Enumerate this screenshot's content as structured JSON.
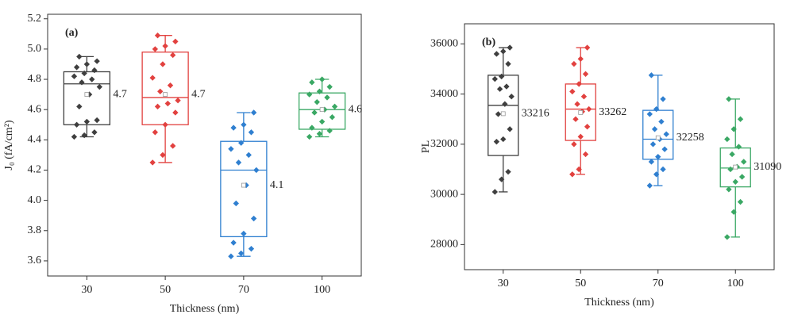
{
  "chart_data": [
    {
      "type": "box",
      "annotation": "(a)",
      "ylabel": "J₀ (fA/cm²)",
      "xlabel": "Thickness (nm)",
      "categories": [
        "30",
        "50",
        "70",
        "100"
      ],
      "colors": [
        "#3f3f3f",
        "#e2413f",
        "#2f7fd0",
        "#3aa864"
      ],
      "ylim": [
        3.5,
        5.23
      ],
      "yticks": [
        3.6,
        3.8,
        {
          "value": 4,
          "label": "4.0"
        },
        4.2,
        4.4,
        4.6,
        4.8,
        {
          "value": 5,
          "label": "5.0"
        },
        5.2
      ],
      "boxes": [
        {
          "min": 4.42,
          "q1": 4.5,
          "median": 4.77,
          "q3": 4.85,
          "max": 4.95,
          "mean": 4.7,
          "points": [
            4.42,
            4.43,
            4.45,
            4.5,
            4.52,
            4.53,
            4.62,
            4.7,
            4.75,
            4.78,
            4.8,
            4.82,
            4.84,
            4.86,
            4.88,
            4.9,
            4.92,
            4.95
          ]
        },
        {
          "min": 4.25,
          "q1": 4.5,
          "median": 4.68,
          "q3": 4.98,
          "max": 5.09,
          "mean": 4.7,
          "points": [
            4.25,
            4.3,
            4.36,
            4.45,
            4.5,
            4.58,
            4.62,
            4.64,
            4.66,
            4.72,
            4.76,
            4.81,
            4.9,
            4.96,
            5.0,
            5.02,
            5.05,
            5.09
          ]
        },
        {
          "min": 3.63,
          "q1": 3.76,
          "median": 4.2,
          "q3": 4.39,
          "max": 4.58,
          "mean": 4.1,
          "points": [
            3.63,
            3.65,
            3.68,
            3.72,
            3.78,
            3.88,
            3.98,
            4.1,
            4.2,
            4.25,
            4.3,
            4.34,
            4.38,
            4.45,
            4.48,
            4.5,
            4.58
          ]
        },
        {
          "min": 4.42,
          "q1": 4.47,
          "median": 4.6,
          "q3": 4.71,
          "max": 4.8,
          "mean": 4.6,
          "points": [
            4.42,
            4.44,
            4.46,
            4.48,
            4.52,
            4.55,
            4.58,
            4.6,
            4.62,
            4.65,
            4.68,
            4.7,
            4.72,
            4.75,
            4.78,
            4.8
          ]
        }
      ]
    },
    {
      "type": "box",
      "annotation": "(b)",
      "ylabel": "PL",
      "xlabel": "Thickness (nm)",
      "categories": [
        "30",
        "50",
        "70",
        "100"
      ],
      "colors": [
        "#3f3f3f",
        "#e2413f",
        "#2f7fd0",
        "#3aa864"
      ],
      "ylim": [
        27000,
        36800
      ],
      "yticks": [
        28000,
        30000,
        32000,
        34000,
        36000
      ],
      "boxes": [
        {
          "min": 30100,
          "q1": 31550,
          "median": 33550,
          "q3": 34750,
          "max": 35850,
          "mean": 33216,
          "points": [
            30100,
            30600,
            30900,
            32100,
            32200,
            32600,
            33200,
            33600,
            33900,
            34200,
            34300,
            34600,
            34700,
            35200,
            35600,
            35700,
            35850
          ]
        },
        {
          "min": 30800,
          "q1": 32150,
          "median": 33400,
          "q3": 34400,
          "max": 35850,
          "mean": 33262,
          "points": [
            30800,
            31000,
            31600,
            32000,
            32300,
            32700,
            33000,
            33300,
            33400,
            33600,
            33900,
            34100,
            34400,
            34800,
            35200,
            35400,
            35850
          ]
        },
        {
          "min": 30350,
          "q1": 31400,
          "median": 32200,
          "q3": 33350,
          "max": 34750,
          "mean": 32258,
          "points": [
            30350,
            30800,
            31000,
            31300,
            31500,
            31800,
            32000,
            32200,
            32400,
            32600,
            32900,
            33200,
            33400,
            33800,
            34750
          ]
        },
        {
          "min": 28300,
          "q1": 30300,
          "median": 31050,
          "q3": 31850,
          "max": 33800,
          "mean": 31090,
          "points": [
            28300,
            29300,
            29700,
            30200,
            30500,
            30700,
            31000,
            31100,
            31300,
            31600,
            31900,
            32200,
            32600,
            33000,
            33800
          ]
        }
      ]
    }
  ]
}
